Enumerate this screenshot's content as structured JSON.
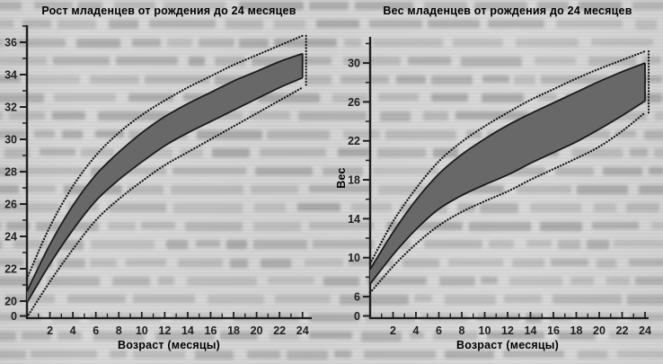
{
  "page": {
    "paper_color": "#d6d6d6",
    "ink_color": "#1f1f1f",
    "band_fill_color": "#686868",
    "ghost_text_color": "#8f8f8f",
    "ghost_text_rows": 20,
    "note": "scanned book page; illegible blurred text shows through behind both charts"
  },
  "chart_data": [
    {
      "type": "area",
      "title": "Рост младенцев от рождения до 24 месяцев",
      "xlabel": "Возраст (месяцы)",
      "ylabel": "",
      "x": [
        0,
        2,
        4,
        6,
        8,
        10,
        12,
        14,
        16,
        18,
        20,
        22,
        24
      ],
      "x_tick_labels": [
        2,
        4,
        6,
        8,
        10,
        12,
        14,
        16,
        18,
        20,
        22,
        24
      ],
      "y_ticks": {
        "major": [
          20,
          22,
          24,
          26,
          28,
          30,
          32,
          34,
          36
        ],
        "minor": [
          21,
          23,
          25,
          27,
          29,
          31,
          33,
          35,
          37
        ],
        "zero_at_origin": true
      },
      "ylim": [
        20,
        36
      ],
      "grid": false,
      "legend": false,
      "series": [
        {
          "name": "band_lower",
          "style": "solid-edge-of-gray-band",
          "values": [
            19.9,
            22.3,
            24.4,
            26.2,
            27.5,
            28.6,
            29.6,
            30.4,
            31.1,
            31.8,
            32.5,
            33.2,
            33.8
          ]
        },
        {
          "name": "band_upper",
          "style": "solid-edge-of-gray-band",
          "values": [
            20.6,
            23.5,
            25.9,
            27.8,
            29.2,
            30.4,
            31.4,
            32.2,
            32.9,
            33.6,
            34.2,
            34.8,
            35.3
          ]
        },
        {
          "name": "dotted_lower",
          "style": "dotted",
          "values": [
            19.0,
            21.2,
            23.2,
            25.0,
            26.3,
            27.4,
            28.4,
            29.2,
            30.0,
            30.8,
            31.6,
            32.4,
            33.2
          ]
        },
        {
          "name": "dotted_upper",
          "style": "dotted",
          "values": [
            21.4,
            24.6,
            27.1,
            29.0,
            30.4,
            31.5,
            32.4,
            33.2,
            33.9,
            34.6,
            35.2,
            35.8,
            36.4
          ]
        }
      ]
    },
    {
      "type": "area",
      "title": "Вес младенцев от рождения до 24 месяцев",
      "xlabel": "Возраст (месяцы)",
      "ylabel": "Вес",
      "x": [
        0,
        2,
        4,
        6,
        8,
        10,
        12,
        14,
        16,
        18,
        20,
        22,
        24
      ],
      "x_tick_labels": [
        2,
        4,
        6,
        8,
        10,
        12,
        14,
        16,
        18,
        20,
        22,
        24
      ],
      "y_ticks": {
        "major": [
          6,
          10,
          14,
          18,
          22,
          26,
          30
        ],
        "minor": [
          8,
          12,
          16,
          20,
          24,
          28,
          32
        ],
        "zero_at_origin": true
      },
      "ylim": [
        6,
        30
      ],
      "grid": false,
      "legend": false,
      "series": [
        {
          "name": "band_lower",
          "style": "solid-edge-of-gray-band",
          "values": [
            7.3,
            10.3,
            12.9,
            15.0,
            16.4,
            17.5,
            18.5,
            19.7,
            20.8,
            21.9,
            23.2,
            24.6,
            26.1
          ]
        },
        {
          "name": "band_upper",
          "style": "solid-edge-of-gray-band",
          "values": [
            8.8,
            12.6,
            15.9,
            18.6,
            20.6,
            22.2,
            23.6,
            24.8,
            25.9,
            27.0,
            28.1,
            29.1,
            30.0
          ]
        },
        {
          "name": "dotted_lower",
          "style": "dotted",
          "values": [
            6.4,
            9.1,
            11.4,
            13.3,
            14.7,
            15.8,
            16.8,
            18.0,
            19.1,
            20.2,
            21.4,
            23.0,
            24.9
          ]
        },
        {
          "name": "dotted_upper",
          "style": "dotted",
          "values": [
            9.4,
            13.7,
            17.1,
            19.9,
            21.9,
            23.5,
            24.9,
            26.2,
            27.3,
            28.4,
            29.4,
            30.3,
            31.2
          ]
        }
      ]
    }
  ]
}
